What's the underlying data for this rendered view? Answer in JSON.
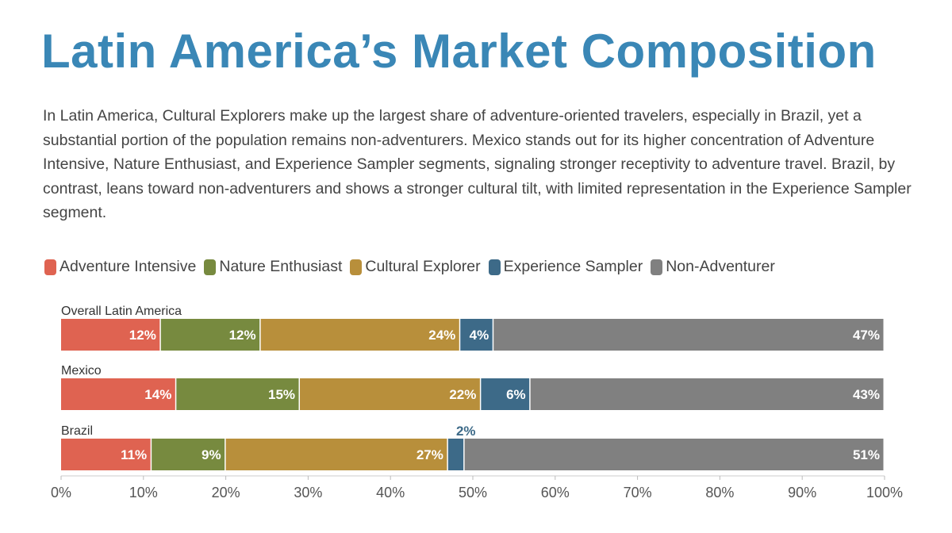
{
  "title": "Latin America’s Market Composition",
  "description": "In Latin America, Cultural Explorers make up the largest share of adventure-oriented travelers, especially in Brazil, yet a substantial portion of the population remains non-adventurers. Mexico stands out for its higher concentration of Adventure Intensive, Nature Enthusiast, and Experience Sampler segments, signaling stronger receptivity to adventure travel. Brazil, by contrast, leans toward non-adventurers and shows a stronger cultural tilt, with limited representation in the Experience Sampler segment.",
  "chart_data": {
    "type": "bar",
    "orientation": "horizontal-stacked",
    "categories": [
      "Overall Latin America",
      "Mexico",
      "Brazil"
    ],
    "series": [
      {
        "name": "Adventure Intensive",
        "color": "#df6351",
        "values": [
          12,
          14,
          11
        ]
      },
      {
        "name": "Nature Enthusiast",
        "color": "#778a3f",
        "values": [
          12,
          15,
          9
        ]
      },
      {
        "name": "Cultural Explorer",
        "color": "#b88f3b",
        "values": [
          24,
          22,
          27
        ]
      },
      {
        "name": "Experience Sampler",
        "color": "#3d6a88",
        "values": [
          4,
          6,
          2
        ]
      },
      {
        "name": "Non-Adventurer",
        "color": "#808080",
        "values": [
          47,
          43,
          51
        ]
      }
    ],
    "xlim": [
      0,
      100
    ],
    "xticks": [
      "0%",
      "10%",
      "20%",
      "30%",
      "40%",
      "50%",
      "60%",
      "70%",
      "80%",
      "90%",
      "100%"
    ],
    "legend_position": "top-left",
    "grid": false
  }
}
